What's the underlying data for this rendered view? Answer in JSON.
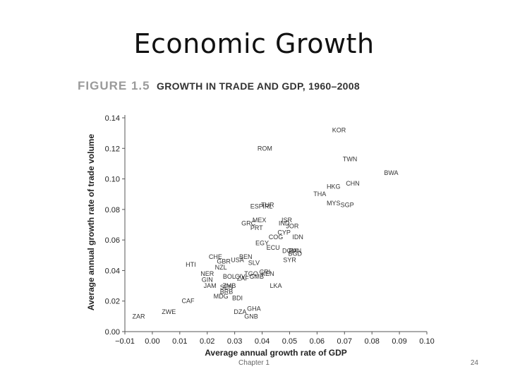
{
  "slide": {
    "title": "Economic Growth",
    "footer_center": "Chapter 1",
    "page_number": "24"
  },
  "figure": {
    "label": "FIGURE 1.5",
    "title": "GROWTH IN TRADE AND GDP, 1960–2008"
  },
  "chart_data": {
    "type": "scatter",
    "title": "GROWTH IN TRADE AND GDP, 1960–2008",
    "xlabel": "Average annual growth rate of GDP",
    "ylabel": "Average annual growth rate of trade volume",
    "xlim": [
      -0.01,
      0.1
    ],
    "ylim": [
      0.0,
      0.14
    ],
    "xticks": [
      -0.01,
      0.0,
      0.01,
      0.02,
      0.03,
      0.04,
      0.05,
      0.06,
      0.07,
      0.08,
      0.09,
      0.1
    ],
    "xtick_labels": [
      "−0.01",
      "0.00",
      "0.01",
      "0.02",
      "0.03",
      "0.04",
      "0.05",
      "0.06",
      "0.07",
      "0.08",
      "0.09",
      "0.10"
    ],
    "yticks": [
      0.0,
      0.02,
      0.04,
      0.06,
      0.08,
      0.1,
      0.12,
      0.14
    ],
    "ytick_labels": [
      "0.00",
      "0.02",
      "0.04",
      "0.06",
      "0.08",
      "0.10",
      "0.12",
      "0.14"
    ],
    "points": [
      {
        "label": "KOR",
        "x": 0.068,
        "y": 0.132
      },
      {
        "label": "ROM",
        "x": 0.041,
        "y": 0.12
      },
      {
        "label": "TWN",
        "x": 0.072,
        "y": 0.113
      },
      {
        "label": "BWA",
        "x": 0.087,
        "y": 0.104
      },
      {
        "label": "HKG",
        "x": 0.066,
        "y": 0.095
      },
      {
        "label": "CHN",
        "x": 0.073,
        "y": 0.097
      },
      {
        "label": "THA",
        "x": 0.061,
        "y": 0.09
      },
      {
        "label": "MYS",
        "x": 0.066,
        "y": 0.084
      },
      {
        "label": "SGP",
        "x": 0.071,
        "y": 0.083
      },
      {
        "label": "ESP",
        "x": 0.038,
        "y": 0.082
      },
      {
        "label": "TUR",
        "x": 0.042,
        "y": 0.083
      },
      {
        "label": "IRL",
        "x": 0.042,
        "y": 0.082
      },
      {
        "label": "MEX",
        "x": 0.039,
        "y": 0.073
      },
      {
        "label": "ISR",
        "x": 0.049,
        "y": 0.073
      },
      {
        "label": "IND",
        "x": 0.048,
        "y": 0.071
      },
      {
        "label": "GRC",
        "x": 0.035,
        "y": 0.071
      },
      {
        "label": "JOR",
        "x": 0.051,
        "y": 0.069
      },
      {
        "label": "PRT",
        "x": 0.038,
        "y": 0.068
      },
      {
        "label": "CYP",
        "x": 0.048,
        "y": 0.065
      },
      {
        "label": "IDN",
        "x": 0.053,
        "y": 0.062
      },
      {
        "label": "COG",
        "x": 0.045,
        "y": 0.062
      },
      {
        "label": "EGY",
        "x": 0.04,
        "y": 0.058
      },
      {
        "label": "PAN",
        "x": 0.052,
        "y": 0.053
      },
      {
        "label": "ECU",
        "x": 0.044,
        "y": 0.055
      },
      {
        "label": "SYR",
        "x": 0.05,
        "y": 0.047
      },
      {
        "label": "BGD",
        "x": 0.052,
        "y": 0.051
      },
      {
        "label": "DOM",
        "x": 0.05,
        "y": 0.053
      },
      {
        "label": "HTI",
        "x": 0.014,
        "y": 0.044
      },
      {
        "label": "NZL",
        "x": 0.025,
        "y": 0.042
      },
      {
        "label": "CHE",
        "x": 0.023,
        "y": 0.049
      },
      {
        "label": "GBR",
        "x": 0.026,
        "y": 0.046
      },
      {
        "label": "USA",
        "x": 0.031,
        "y": 0.047
      },
      {
        "label": "BEN",
        "x": 0.034,
        "y": 0.049
      },
      {
        "label": "SLV",
        "x": 0.037,
        "y": 0.045
      },
      {
        "label": "NER",
        "x": 0.02,
        "y": 0.038
      },
      {
        "label": "GIN",
        "x": 0.02,
        "y": 0.034
      },
      {
        "label": "BOL",
        "x": 0.028,
        "y": 0.036
      },
      {
        "label": "CIV",
        "x": 0.032,
        "y": 0.036
      },
      {
        "label": "ZAF",
        "x": 0.033,
        "y": 0.035
      },
      {
        "label": "GMB",
        "x": 0.038,
        "y": 0.036
      },
      {
        "label": "TGO",
        "x": 0.036,
        "y": 0.038
      },
      {
        "label": "CRI",
        "x": 0.041,
        "y": 0.039
      },
      {
        "label": "KEN",
        "x": 0.042,
        "y": 0.038
      },
      {
        "label": "LKA",
        "x": 0.045,
        "y": 0.03
      },
      {
        "label": "JAM",
        "x": 0.021,
        "y": 0.03
      },
      {
        "label": "SEN",
        "x": 0.027,
        "y": 0.029
      },
      {
        "label": "ZMB",
        "x": 0.028,
        "y": 0.03
      },
      {
        "label": "BRB",
        "x": 0.027,
        "y": 0.026
      },
      {
        "label": "MDG",
        "x": 0.025,
        "y": 0.023
      },
      {
        "label": "BDI",
        "x": 0.031,
        "y": 0.022
      },
      {
        "label": "CAF",
        "x": 0.013,
        "y": 0.02
      },
      {
        "label": "ZWE",
        "x": 0.006,
        "y": 0.013
      },
      {
        "label": "ZAR",
        "x": -0.005,
        "y": 0.01
      },
      {
        "label": "DZA",
        "x": 0.032,
        "y": 0.013
      },
      {
        "label": "GHA",
        "x": 0.037,
        "y": 0.015
      },
      {
        "label": "GNB",
        "x": 0.036,
        "y": 0.01
      }
    ]
  }
}
